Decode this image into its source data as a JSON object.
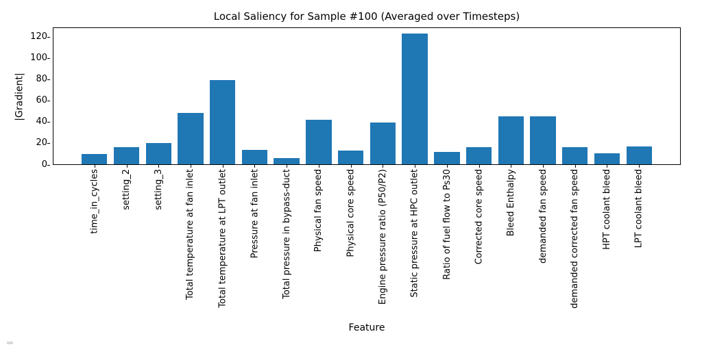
{
  "figure": {
    "background": "#ffffff",
    "text_color": "#000000",
    "spine_color": "#000000"
  },
  "chart_data": {
    "type": "bar",
    "title": "Local Saliency for Sample #100 (Averaged over Timesteps)",
    "xlabel": "Feature",
    "ylabel": "|Gradient|",
    "bar_color": "#1f77b4",
    "grid": false,
    "legend": null,
    "ylim": [
      0,
      129
    ],
    "yticks": [
      0,
      20,
      40,
      60,
      80,
      100,
      120
    ],
    "categories": [
      "time_in_cycles",
      "setting_2",
      "setting_3",
      "Total temperature at fan inlet",
      "Total temperature at LPT outlet",
      "Pressure at fan inlet",
      "Total pressure in bypass-duct",
      "Physical fan speed",
      "Physical core speed",
      "Engine pressure ratio (P50/P2)",
      "Static pressure at HPC outlet",
      "Ratio of fuel flow to Ps30",
      "Corrected core speed",
      "Bleed Enthalpy",
      "demanded fan speed",
      "demanded corrected fan speed",
      "HPT coolant bleed",
      "LPT coolant bleed"
    ],
    "values": [
      9.4,
      15.8,
      19.7,
      48.3,
      79.2,
      13.4,
      5.7,
      42.0,
      12.8,
      39.5,
      122.5,
      11.4,
      16.4,
      45.0,
      45.0,
      15.9,
      10.4,
      17.0
    ]
  }
}
